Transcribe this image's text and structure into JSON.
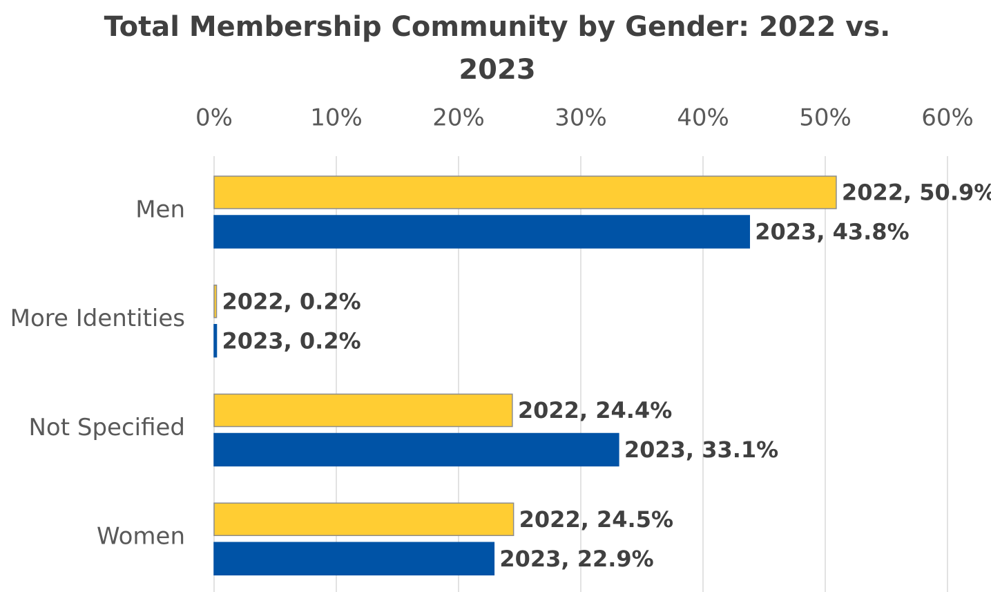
{
  "chart_data": {
    "type": "hbar",
    "title": "Total Membership Community by Gender: 2022 vs. 2023",
    "categories": [
      "Men",
      "More Identities",
      "Not Specified",
      "Women"
    ],
    "series": [
      {
        "name": "2022",
        "color": "#FFCD33",
        "values": [
          50.9,
          0.2,
          24.4,
          24.5
        ],
        "value_labels": [
          "2022, 50.9%",
          "2022, 0.2%",
          "2022, 24.4%",
          "2022, 24.5%"
        ]
      },
      {
        "name": "2023",
        "color": "#0053A6",
        "values": [
          43.8,
          0.2,
          33.1,
          22.9
        ],
        "value_labels": [
          "2023, 43.8%",
          "2023, 0.2%",
          "2023, 33.1%",
          "2023, 22.9%"
        ]
      }
    ],
    "xlim": [
      0,
      60
    ],
    "xticks": [
      {
        "value": 0,
        "label": "0%"
      },
      {
        "value": 10,
        "label": "10%"
      },
      {
        "value": 20,
        "label": "20%"
      },
      {
        "value": 30,
        "label": "30%"
      },
      {
        "value": 40,
        "label": "40%"
      },
      {
        "value": 50,
        "label": "50%"
      },
      {
        "value": 60,
        "label": "60%"
      }
    ],
    "grid": true
  }
}
